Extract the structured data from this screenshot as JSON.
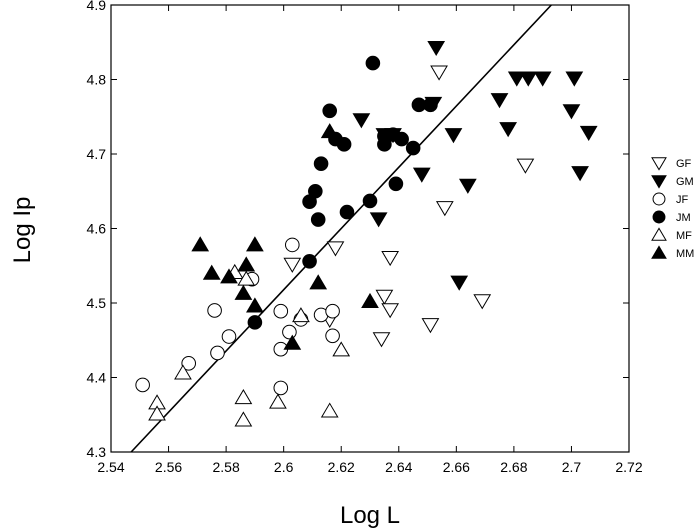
{
  "chart_data": {
    "type": "scatter",
    "xlabel": "Log L",
    "ylabel": "Log Ip",
    "xlim": [
      2.54,
      2.72
    ],
    "ylim": [
      4.3,
      4.9
    ],
    "xticks": [
      "2.54",
      "2.56",
      "2.58",
      "2.6",
      "2.62",
      "2.64",
      "2.66",
      "2.68",
      "2.7",
      "2.72"
    ],
    "yticks": [
      "4.3",
      "4.4",
      "4.5",
      "4.6",
      "4.7",
      "4.8",
      "4.9"
    ],
    "grid": false,
    "legend_position": "right",
    "fit_line": {
      "x": [
        2.547,
        2.693
      ],
      "y": [
        4.3,
        4.9
      ]
    },
    "series": [
      {
        "name": "GF",
        "marker": "triangle-down-open",
        "points": [
          [
            2.654,
            4.81
          ],
          [
            2.684,
            4.685
          ],
          [
            2.656,
            4.628
          ],
          [
            2.603,
            4.552
          ],
          [
            2.618,
            4.574
          ],
          [
            2.637,
            4.561
          ],
          [
            2.635,
            4.509
          ],
          [
            2.637,
            4.491
          ],
          [
            2.634,
            4.452
          ],
          [
            2.651,
            4.471
          ],
          [
            2.669,
            4.503
          ],
          [
            2.616,
            4.478
          ]
        ]
      },
      {
        "name": "GM",
        "marker": "triangle-down-filled",
        "points": [
          [
            2.653,
            4.843
          ],
          [
            2.681,
            4.802
          ],
          [
            2.685,
            4.802
          ],
          [
            2.69,
            4.802
          ],
          [
            2.701,
            4.802
          ],
          [
            2.675,
            4.773
          ],
          [
            2.678,
            4.734
          ],
          [
            2.7,
            4.758
          ],
          [
            2.706,
            4.729
          ],
          [
            2.703,
            4.675
          ],
          [
            2.659,
            4.726
          ],
          [
            2.652,
            4.768
          ],
          [
            2.627,
            4.746
          ],
          [
            2.638,
            4.726
          ],
          [
            2.635,
            4.726
          ],
          [
            2.648,
            4.673
          ],
          [
            2.664,
            4.658
          ],
          [
            2.633,
            4.613
          ],
          [
            2.661,
            4.528
          ]
        ]
      },
      {
        "name": "JF",
        "marker": "circle-open",
        "points": [
          [
            2.551,
            4.39
          ],
          [
            2.567,
            4.419
          ],
          [
            2.576,
            4.49
          ],
          [
            2.577,
            4.433
          ],
          [
            2.581,
            4.455
          ],
          [
            2.589,
            4.532
          ],
          [
            2.599,
            4.489
          ],
          [
            2.602,
            4.461
          ],
          [
            2.599,
            4.438
          ],
          [
            2.603,
            4.578
          ],
          [
            2.606,
            4.478
          ],
          [
            2.599,
            4.386
          ],
          [
            2.613,
            4.484
          ],
          [
            2.617,
            4.489
          ],
          [
            2.617,
            4.456
          ]
        ]
      },
      {
        "name": "JM",
        "marker": "circle-filled",
        "points": [
          [
            2.631,
            4.822
          ],
          [
            2.616,
            4.758
          ],
          [
            2.618,
            4.72
          ],
          [
            2.621,
            4.713
          ],
          [
            2.613,
            4.687
          ],
          [
            2.635,
            4.724
          ],
          [
            2.638,
            4.726
          ],
          [
            2.641,
            4.72
          ],
          [
            2.647,
            4.766
          ],
          [
            2.651,
            4.766
          ],
          [
            2.645,
            4.708
          ],
          [
            2.635,
            4.713
          ],
          [
            2.639,
            4.66
          ],
          [
            2.609,
            4.636
          ],
          [
            2.611,
            4.65
          ],
          [
            2.612,
            4.612
          ],
          [
            2.622,
            4.622
          ],
          [
            2.63,
            4.637
          ],
          [
            2.609,
            4.556
          ],
          [
            2.59,
            4.474
          ]
        ]
      },
      {
        "name": "MF",
        "marker": "triangle-up-open",
        "points": [
          [
            2.556,
            4.366
          ],
          [
            2.556,
            4.351
          ],
          [
            2.565,
            4.406
          ],
          [
            2.583,
            4.541
          ],
          [
            2.587,
            4.532
          ],
          [
            2.586,
            4.373
          ],
          [
            2.586,
            4.343
          ],
          [
            2.598,
            4.367
          ],
          [
            2.606,
            4.483
          ],
          [
            2.616,
            4.355
          ],
          [
            2.62,
            4.437
          ]
        ]
      },
      {
        "name": "MM",
        "marker": "triangle-up-filled",
        "points": [
          [
            2.571,
            4.578
          ],
          [
            2.575,
            4.54
          ],
          [
            2.581,
            4.535
          ],
          [
            2.587,
            4.551
          ],
          [
            2.59,
            4.578
          ],
          [
            2.586,
            4.513
          ],
          [
            2.59,
            4.496
          ],
          [
            2.603,
            4.446
          ],
          [
            2.612,
            4.527
          ],
          [
            2.616,
            4.73
          ],
          [
            2.63,
            4.502
          ]
        ]
      }
    ]
  }
}
